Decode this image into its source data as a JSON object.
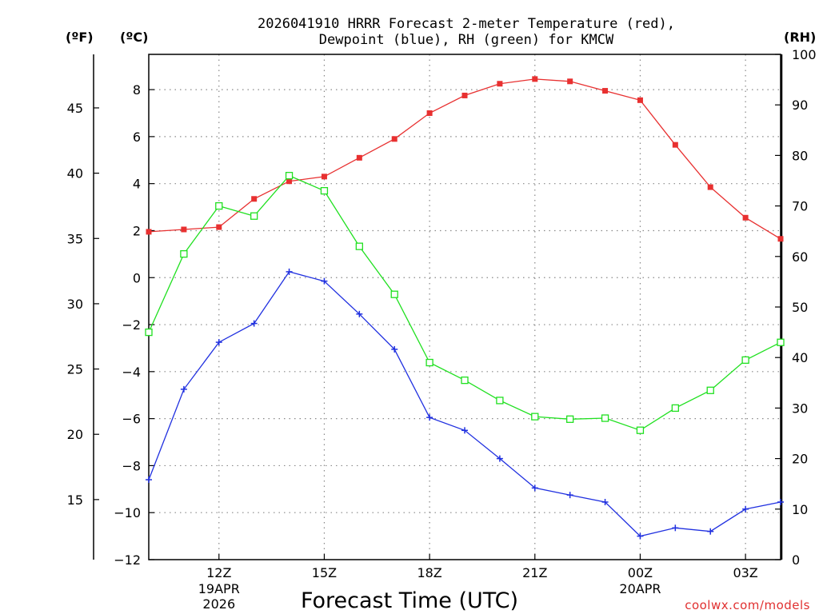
{
  "chart_data": {
    "type": "line",
    "title_line1": "2026041910 HRRR Forecast 2-meter Temperature (red),",
    "title_line2": "Dewpoint (blue), RH (green) for KMCW",
    "xlabel": "Forecast Time (UTC)",
    "credit": "coolwx.com/models",
    "unit_f": "(ºF)",
    "unit_c": "(ºC)",
    "unit_rh": "(RH)",
    "x_hours": [
      10,
      11,
      12,
      13,
      14,
      15,
      16,
      17,
      18,
      19,
      20,
      21,
      22,
      23,
      24,
      25,
      26,
      27,
      28
    ],
    "xlim": [
      10,
      28
    ],
    "x_ticks": [
      {
        "hour": 12,
        "label": "12Z",
        "sub1": "19APR",
        "sub2": "2026"
      },
      {
        "hour": 15,
        "label": "15Z",
        "sub1": "",
        "sub2": ""
      },
      {
        "hour": 18,
        "label": "18Z",
        "sub1": "",
        "sub2": ""
      },
      {
        "hour": 21,
        "label": "21Z",
        "sub1": "",
        "sub2": ""
      },
      {
        "hour": 24,
        "label": "00Z",
        "sub1": "20APR",
        "sub2": ""
      },
      {
        "hour": 27,
        "label": "03Z",
        "sub1": "",
        "sub2": ""
      }
    ],
    "ylim_c": [
      -12,
      9.5
    ],
    "y_ticks_c": [
      "8",
      "6",
      "4",
      "2",
      "0",
      "−2",
      "−4",
      "−6",
      "−8",
      "−10",
      "−12"
    ],
    "y_ticks_f": [
      "45",
      "40",
      "35",
      "30",
      "25",
      "20",
      "15"
    ],
    "ylim_rh": [
      0,
      100
    ],
    "y_ticks_rh": [
      "100",
      "90",
      "80",
      "70",
      "60",
      "50",
      "40",
      "30",
      "20",
      "10",
      "0"
    ],
    "series": [
      {
        "name": "Temperature (°C)",
        "color": "#e83030",
        "values": [
          1.95,
          2.05,
          2.15,
          3.35,
          4.1,
          4.3,
          5.1,
          5.9,
          7.0,
          7.75,
          8.25,
          8.45,
          8.35,
          7.95,
          7.55,
          5.65,
          3.85,
          2.55,
          1.65
        ]
      },
      {
        "name": "Dewpoint (°C)",
        "color": "#2030e0",
        "values": [
          -8.6,
          -4.75,
          -2.75,
          -1.95,
          0.25,
          -0.15,
          -1.55,
          -3.05,
          -5.95,
          -6.5,
          -7.7,
          -8.95,
          -9.25,
          -9.55,
          -11.0,
          -10.65,
          -10.8,
          -9.85,
          -9.55
        ]
      },
      {
        "name": "RH (%)",
        "color": "#20e020",
        "values": [
          45,
          60.5,
          70,
          68,
          76,
          73,
          62,
          52.5,
          39,
          35.5,
          31.5,
          28.3,
          27.8,
          28,
          25.6,
          30,
          33.5,
          39.5,
          43
        ]
      }
    ]
  }
}
